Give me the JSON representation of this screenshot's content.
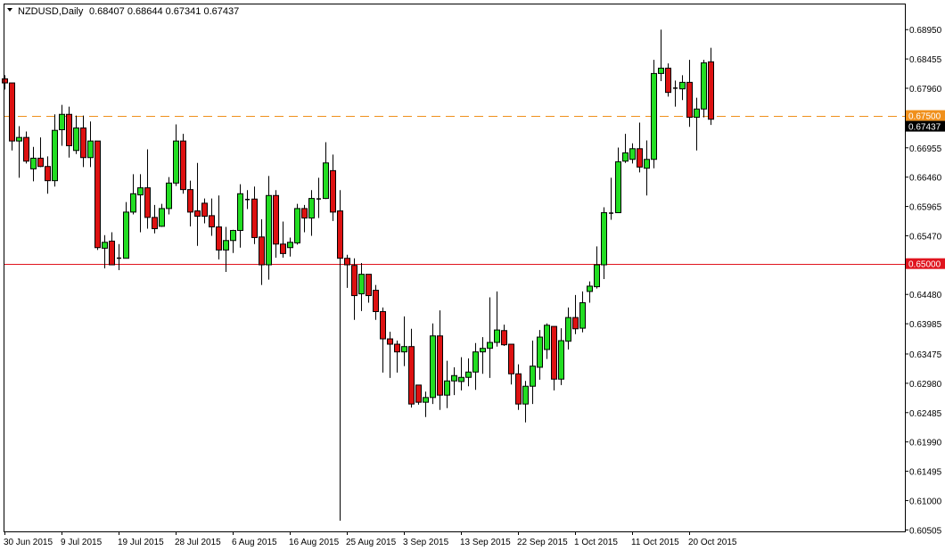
{
  "header": {
    "symbol_timeframe": "NZDUSD,Daily",
    "ohlc_readout": "0.68407 0.68644 0.67341 0.67437"
  },
  "colors": {
    "bull": "#22dd22",
    "bear": "#dd1111",
    "resistance_line": "#f0901c",
    "support_line": "#e0141e",
    "current_price_box": "#000000"
  },
  "chart_data": {
    "type": "candlestick",
    "symbol": "NZDUSD",
    "timeframe": "Daily",
    "ylim": [
      0.6048,
      0.6939
    ],
    "grid": false,
    "y_ticks": [
      "0.68950",
      "0.68455",
      "0.67960",
      "0.66955",
      "0.66460",
      "0.65965",
      "0.65470",
      "0.64480",
      "0.63985",
      "0.63475",
      "0.62980",
      "0.62485",
      "0.61990",
      "0.61495",
      "0.61000",
      "0.60505"
    ],
    "x_labels": [
      "30 Jun 2015",
      "9 Jul 2015",
      "19 Jul 2015",
      "28 Jul 2015",
      "6 Aug 2015",
      "16 Aug 2015",
      "25 Aug 2015",
      "3 Sep 2015",
      "13 Sep 2015",
      "22 Sep 2015",
      "1 Oct 2015",
      "11 Oct 2015",
      "20 Oct 2015"
    ],
    "x_label_every_n_bars": 8,
    "horizontal_lines": [
      {
        "price": 0.675,
        "label": "0.67500",
        "style": "dashed",
        "color": "#f0901c"
      },
      {
        "price": 0.65,
        "label": "0.65000",
        "style": "solid",
        "color": "#e0141e"
      }
    ],
    "current_price": {
      "price": 0.67437,
      "label": "0.67437"
    },
    "ohlc_fields": [
      "open",
      "high",
      "low",
      "close"
    ],
    "candles": [
      [
        0.6812,
        0.6818,
        0.6794,
        0.6805
      ],
      [
        0.6805,
        0.6805,
        0.6691,
        0.6707
      ],
      [
        0.6707,
        0.6732,
        0.6645,
        0.6713
      ],
      [
        0.6713,
        0.6723,
        0.6669,
        0.6673
      ],
      [
        0.666,
        0.6697,
        0.6639,
        0.6678
      ],
      [
        0.6678,
        0.6713,
        0.6663,
        0.6664
      ],
      [
        0.6664,
        0.6681,
        0.6618,
        0.664
      ],
      [
        0.664,
        0.6752,
        0.663,
        0.6725
      ],
      [
        0.6726,
        0.6768,
        0.6699,
        0.6752
      ],
      [
        0.6752,
        0.6765,
        0.6679,
        0.6699
      ],
      [
        0.6691,
        0.675,
        0.6685,
        0.6729
      ],
      [
        0.6729,
        0.675,
        0.6663,
        0.6679
      ],
      [
        0.6679,
        0.674,
        0.6663,
        0.6707
      ],
      [
        0.6707,
        0.6707,
        0.6523,
        0.6527
      ],
      [
        0.6526,
        0.6548,
        0.6492,
        0.6536
      ],
      [
        0.6538,
        0.6553,
        0.6498,
        0.6498
      ],
      [
        0.651,
        0.6533,
        0.6489,
        0.651
      ],
      [
        0.6509,
        0.6604,
        0.6509,
        0.6587
      ],
      [
        0.6587,
        0.6651,
        0.6583,
        0.6618
      ],
      [
        0.6616,
        0.6651,
        0.6553,
        0.6628
      ],
      [
        0.6628,
        0.6693,
        0.6559,
        0.6578
      ],
      [
        0.6578,
        0.6599,
        0.6551,
        0.6559
      ],
      [
        0.6563,
        0.6601,
        0.6562,
        0.6593
      ],
      [
        0.6593,
        0.6646,
        0.6583,
        0.6636
      ],
      [
        0.6636,
        0.6735,
        0.6631,
        0.6707
      ],
      [
        0.6707,
        0.6719,
        0.6618,
        0.6625
      ],
      [
        0.6625,
        0.664,
        0.6563,
        0.6587
      ],
      [
        0.6589,
        0.667,
        0.653,
        0.658
      ],
      [
        0.6602,
        0.661,
        0.6568,
        0.658
      ],
      [
        0.6581,
        0.661,
        0.6547,
        0.6562
      ],
      [
        0.6562,
        0.6615,
        0.6507,
        0.6523
      ],
      [
        0.6523,
        0.6562,
        0.6486,
        0.6539
      ],
      [
        0.6539,
        0.6557,
        0.6518,
        0.6556
      ],
      [
        0.6556,
        0.6634,
        0.6527,
        0.6618
      ],
      [
        0.6609,
        0.6624,
        0.6592,
        0.6609
      ],
      [
        0.6609,
        0.663,
        0.6533,
        0.6544
      ],
      [
        0.6545,
        0.6575,
        0.6464,
        0.6498
      ],
      [
        0.6498,
        0.6648,
        0.6473,
        0.6615
      ],
      [
        0.6615,
        0.6624,
        0.651,
        0.6533
      ],
      [
        0.6533,
        0.6571,
        0.651,
        0.6517
      ],
      [
        0.6527,
        0.6544,
        0.6512,
        0.6536
      ],
      [
        0.6535,
        0.6601,
        0.6532,
        0.6593
      ],
      [
        0.6593,
        0.6599,
        0.6553,
        0.6577
      ],
      [
        0.6577,
        0.6624,
        0.6547,
        0.661
      ],
      [
        0.661,
        0.6645,
        0.6577,
        0.661
      ],
      [
        0.661,
        0.6705,
        0.6609,
        0.667
      ],
      [
        0.6657,
        0.6684,
        0.6572,
        0.6587
      ],
      [
        0.6589,
        0.6624,
        0.6066,
        0.6509
      ],
      [
        0.6509,
        0.6515,
        0.6459,
        0.6498
      ],
      [
        0.6497,
        0.6509,
        0.6405,
        0.6446
      ],
      [
        0.6449,
        0.6501,
        0.642,
        0.6482
      ],
      [
        0.6482,
        0.6482,
        0.6434,
        0.6446
      ],
      [
        0.6455,
        0.6464,
        0.6405,
        0.6419
      ],
      [
        0.6419,
        0.6426,
        0.6316,
        0.6373
      ],
      [
        0.6373,
        0.6385,
        0.6307,
        0.6364
      ],
      [
        0.6364,
        0.637,
        0.6316,
        0.6351
      ],
      [
        0.6351,
        0.6411,
        0.6327,
        0.636
      ],
      [
        0.636,
        0.639,
        0.6257,
        0.6263
      ],
      [
        0.6295,
        0.6295,
        0.6262,
        0.6266
      ],
      [
        0.6266,
        0.6284,
        0.6241,
        0.6274
      ],
      [
        0.6274,
        0.6399,
        0.6263,
        0.6378
      ],
      [
        0.6378,
        0.6421,
        0.6253,
        0.6278
      ],
      [
        0.6278,
        0.6336,
        0.6256,
        0.6302
      ],
      [
        0.6302,
        0.6325,
        0.6278,
        0.6311
      ],
      [
        0.6301,
        0.6342,
        0.6286,
        0.6308
      ],
      [
        0.6308,
        0.634,
        0.6293,
        0.6317
      ],
      [
        0.6317,
        0.6366,
        0.6287,
        0.6351
      ],
      [
        0.6351,
        0.6376,
        0.6314,
        0.6357
      ],
      [
        0.6357,
        0.6443,
        0.6307,
        0.6367
      ],
      [
        0.6367,
        0.6453,
        0.636,
        0.6388
      ],
      [
        0.6387,
        0.6397,
        0.6361,
        0.6363
      ],
      [
        0.6364,
        0.6364,
        0.6296,
        0.6314
      ],
      [
        0.6314,
        0.633,
        0.6253,
        0.6263
      ],
      [
        0.6263,
        0.6302,
        0.6232,
        0.6293
      ],
      [
        0.6293,
        0.637,
        0.6263,
        0.6327
      ],
      [
        0.6325,
        0.6388,
        0.6304,
        0.6376
      ],
      [
        0.6355,
        0.6399,
        0.6339,
        0.6396
      ],
      [
        0.6394,
        0.6394,
        0.6286,
        0.6305
      ],
      [
        0.6305,
        0.6391,
        0.6295,
        0.637
      ],
      [
        0.6369,
        0.6426,
        0.6355,
        0.6409
      ],
      [
        0.6409,
        0.6447,
        0.6381,
        0.639
      ],
      [
        0.6391,
        0.6453,
        0.6384,
        0.6434
      ],
      [
        0.6453,
        0.647,
        0.6434,
        0.6462
      ],
      [
        0.6461,
        0.6529,
        0.6458,
        0.6498
      ],
      [
        0.6498,
        0.6595,
        0.6474,
        0.6586
      ],
      [
        0.6586,
        0.6645,
        0.6574,
        0.6586
      ],
      [
        0.6586,
        0.6696,
        0.6586,
        0.6672
      ],
      [
        0.6673,
        0.6719,
        0.667,
        0.6687
      ],
      [
        0.6676,
        0.6703,
        0.6669,
        0.6694
      ],
      [
        0.6694,
        0.6738,
        0.6654,
        0.6663
      ],
      [
        0.6661,
        0.6708,
        0.6615,
        0.6676
      ],
      [
        0.6676,
        0.6844,
        0.6661,
        0.6821
      ],
      [
        0.6821,
        0.6895,
        0.6808,
        0.683
      ],
      [
        0.683,
        0.6838,
        0.6782,
        0.6789
      ],
      [
        0.6797,
        0.6809,
        0.6765,
        0.6797
      ],
      [
        0.6795,
        0.6818,
        0.6776,
        0.6806
      ],
      [
        0.6806,
        0.6844,
        0.6731,
        0.6747
      ],
      [
        0.6747,
        0.678,
        0.6691,
        0.6761
      ],
      [
        0.6761,
        0.6844,
        0.6747,
        0.6839
      ],
      [
        0.68407,
        0.68644,
        0.67341,
        0.67437
      ]
    ]
  }
}
